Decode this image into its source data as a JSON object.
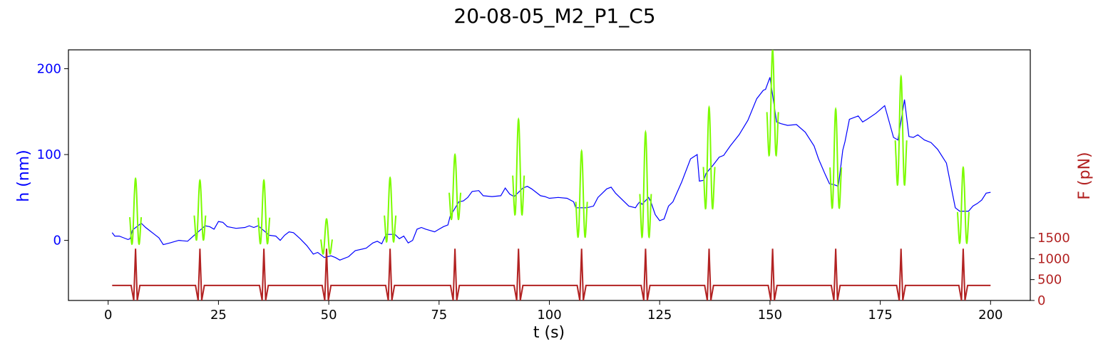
{
  "chart_data": {
    "type": "line",
    "title": "20-08-05_M2_P1_C5",
    "xlabel": "t (s)",
    "ylabel_left": "h (nm)",
    "ylabel_right": "F (pN)",
    "xlim": [
      -9,
      209
    ],
    "ylim_left": [
      -70,
      222
    ],
    "ylim_right": [
      0,
      6000
    ],
    "x_ticks": [
      0,
      25,
      50,
      75,
      100,
      125,
      150,
      175,
      200
    ],
    "y_ticks_left": [
      0,
      100,
      200
    ],
    "y_ticks_right": [
      0,
      500,
      1000,
      1500
    ],
    "grid": false,
    "colors": {
      "height": "#0000ff",
      "pulse": "#7cfc00",
      "force": "#b22222",
      "left_axis": "#0000ff",
      "right_axis": "#b22222"
    },
    "pulse_times": [
      6.2,
      20.8,
      35.3,
      49.5,
      63.9,
      78.6,
      93.0,
      107.3,
      121.8,
      136.2,
      150.6,
      164.9,
      179.7,
      193.8
    ],
    "pulse_height_range": [
      [
        -18,
        72
      ],
      [
        -12,
        70
      ],
      [
        -17,
        70
      ],
      [
        -23,
        25
      ],
      [
        -15,
        73
      ],
      [
        11,
        100
      ],
      [
        10,
        141
      ],
      [
        -14,
        104
      ],
      [
        -18,
        126
      ],
      [
        16,
        155
      ],
      [
        77,
        222
      ],
      [
        17,
        153
      ],
      [
        42,
        191
      ],
      [
        -19,
        85
      ]
    ],
    "series": [
      {
        "name": "h",
        "role": "height",
        "points": [
          [
            0.9,
            9
          ],
          [
            1.5,
            5
          ],
          [
            2.5,
            5
          ],
          [
            3.5,
            3
          ],
          [
            4.5,
            1
          ],
          [
            5.0,
            2
          ],
          [
            5.5,
            12
          ],
          [
            7.5,
            20
          ],
          [
            8.5,
            15
          ],
          [
            9.5,
            11
          ],
          [
            10.5,
            7
          ],
          [
            11.5,
            3
          ],
          [
            12.5,
            -5
          ],
          [
            14,
            -3
          ],
          [
            16,
            0
          ],
          [
            18,
            -1
          ],
          [
            19.5,
            6
          ],
          [
            22,
            17
          ],
          [
            23,
            16
          ],
          [
            24,
            13
          ],
          [
            25,
            22
          ],
          [
            26,
            21
          ],
          [
            27,
            16
          ],
          [
            29,
            14
          ],
          [
            31,
            15
          ],
          [
            32,
            17
          ],
          [
            33,
            15
          ],
          [
            34,
            17
          ],
          [
            36.5,
            6
          ],
          [
            38,
            5
          ],
          [
            39,
            0
          ],
          [
            40,
            6
          ],
          [
            41,
            10
          ],
          [
            42,
            9
          ],
          [
            43.5,
            2
          ],
          [
            45,
            -6
          ],
          [
            46.5,
            -16
          ],
          [
            47.5,
            -14
          ],
          [
            48.5,
            -18
          ],
          [
            49,
            -20
          ],
          [
            50.5,
            -18
          ],
          [
            51.5,
            -20
          ],
          [
            52.5,
            -23
          ],
          [
            54.5,
            -19
          ],
          [
            56,
            -12
          ],
          [
            58.5,
            -9
          ],
          [
            60,
            -3
          ],
          [
            61,
            -1
          ],
          [
            62,
            -4
          ],
          [
            63,
            7
          ],
          [
            65,
            7
          ],
          [
            66,
            2
          ],
          [
            67,
            5
          ],
          [
            68,
            -3
          ],
          [
            69,
            0
          ],
          [
            70,
            13
          ],
          [
            71,
            15
          ],
          [
            72,
            13
          ],
          [
            74,
            10
          ],
          [
            75,
            13
          ],
          [
            76,
            16
          ],
          [
            77,
            18
          ],
          [
            77.5,
            28
          ],
          [
            79.5,
            45
          ],
          [
            80.5,
            46
          ],
          [
            81.5,
            50
          ],
          [
            82.5,
            57
          ],
          [
            84,
            58
          ],
          [
            85,
            52
          ],
          [
            87,
            51
          ],
          [
            89,
            52
          ],
          [
            90,
            61
          ],
          [
            91,
            54
          ],
          [
            92,
            51
          ],
          [
            94,
            61
          ],
          [
            95,
            63
          ],
          [
            96,
            60
          ],
          [
            98,
            52
          ],
          [
            99,
            51
          ],
          [
            100,
            49
          ],
          [
            102,
            50
          ],
          [
            104,
            49
          ],
          [
            105.5,
            45
          ],
          [
            106,
            38
          ],
          [
            108.5,
            38
          ],
          [
            110,
            40
          ],
          [
            111,
            50
          ],
          [
            112,
            55
          ],
          [
            113,
            60
          ],
          [
            114,
            62
          ],
          [
            115,
            55
          ],
          [
            118,
            40
          ],
          [
            119.5,
            38
          ],
          [
            120,
            42
          ],
          [
            120.5,
            45
          ],
          [
            121,
            42
          ],
          [
            122.5,
            50
          ],
          [
            123,
            45
          ],
          [
            124,
            30
          ],
          [
            125,
            23
          ],
          [
            126,
            25
          ],
          [
            127,
            40
          ],
          [
            128,
            45
          ],
          [
            130,
            68
          ],
          [
            132,
            95
          ],
          [
            133.5,
            100
          ],
          [
            134,
            69
          ],
          [
            135,
            70
          ],
          [
            135.5,
            78
          ],
          [
            137,
            87
          ],
          [
            138.5,
            97
          ],
          [
            139.5,
            99
          ],
          [
            141,
            110
          ],
          [
            143,
            123
          ],
          [
            145,
            140
          ],
          [
            147,
            165
          ],
          [
            148.5,
            175
          ],
          [
            149,
            176
          ],
          [
            150,
            190
          ],
          [
            151.5,
            138
          ],
          [
            152.5,
            136
          ],
          [
            154,
            134
          ],
          [
            156,
            135
          ],
          [
            158,
            126
          ],
          [
            160,
            110
          ],
          [
            161,
            95
          ],
          [
            162.5,
            77
          ],
          [
            163.5,
            66
          ],
          [
            164.5,
            65
          ],
          [
            165.5,
            63
          ],
          [
            166.5,
            105
          ],
          [
            167,
            115
          ],
          [
            168,
            141
          ],
          [
            170,
            145
          ],
          [
            171,
            138
          ],
          [
            172,
            141
          ],
          [
            174,
            148
          ],
          [
            176,
            157
          ],
          [
            178,
            120
          ],
          [
            179,
            117
          ],
          [
            180.5,
            164
          ],
          [
            181.5,
            121
          ],
          [
            182.5,
            120
          ],
          [
            183.5,
            123
          ],
          [
            185,
            117
          ],
          [
            186.5,
            114
          ],
          [
            188,
            106
          ],
          [
            190,
            90
          ],
          [
            192,
            38
          ],
          [
            193,
            34
          ],
          [
            195,
            34
          ],
          [
            196,
            40
          ],
          [
            197,
            43
          ],
          [
            198,
            47
          ],
          [
            199,
            55
          ],
          [
            200,
            56
          ]
        ]
      },
      {
        "name": "F",
        "role": "force",
        "baseline": 360,
        "peak": 1240,
        "dip": 0
      }
    ]
  }
}
